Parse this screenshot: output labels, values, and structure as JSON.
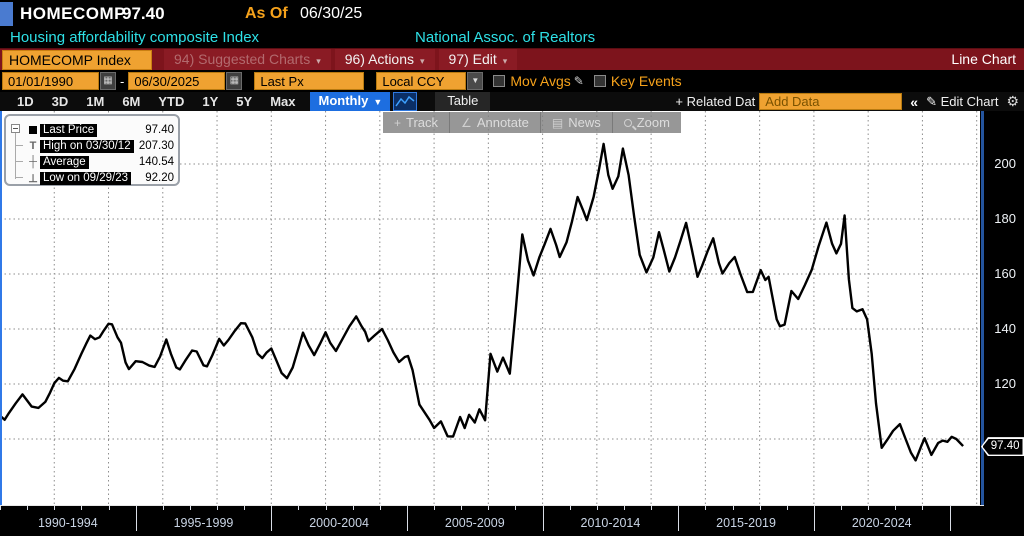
{
  "header": {
    "security": "HOMECOMP",
    "last_value": "97.40",
    "as_of_label": "As Of",
    "as_of_date": "06/30/25",
    "description": "Housing affordability composite Index",
    "source": "National Assoc. of Realtors"
  },
  "menubar": {
    "security_button": "HOMECOMP Index",
    "items": [
      {
        "label": "94) Suggested Charts",
        "dimmed": true
      },
      {
        "label": "96) Actions",
        "dimmed": false
      },
      {
        "label": "97) Edit",
        "dimmed": false
      }
    ],
    "right_label": "Line Chart"
  },
  "controls": {
    "date_from": "01/01/1990",
    "range_dash": "-",
    "date_to": "06/30/2025",
    "price_field": "Last Px",
    "currency_field": "Local CCY",
    "mov_avgs_label": "Mov Avgs",
    "key_events_label": "Key Events"
  },
  "toolbar": {
    "periods": [
      "1D",
      "3D",
      "1M",
      "6M",
      "YTD",
      "1Y",
      "5Y",
      "Max"
    ],
    "frequency": "Monthly",
    "table_label": "Table",
    "plus_label": "+",
    "related_data_label": "Related Dat",
    "add_data_placeholder": "Add Data",
    "collapse_label": "«",
    "edit_chart_label": "Edit Chart"
  },
  "icons": {
    "calendar": "▦",
    "dropdown": "▼",
    "pencil": "✎",
    "gear": "⚙",
    "track": "+",
    "annotate": "∠",
    "news": "▤"
  },
  "chart_tools": [
    "Track",
    "Annotate",
    "News",
    "Zoom"
  ],
  "legend": {
    "rows": [
      {
        "marker": "square",
        "label": "Last Price",
        "value": "97.40"
      },
      {
        "marker": "high",
        "label": "High on 03/30/12",
        "value": "207.30"
      },
      {
        "marker": "avg",
        "label": "Average",
        "value": "140.54"
      },
      {
        "marker": "low",
        "label": "Low on 09/29/23",
        "value": "92.20"
      }
    ]
  },
  "axis": {
    "y_ticks": [
      200,
      180,
      160,
      140,
      120
    ],
    "y_gridlines": [
      200,
      180,
      160,
      140,
      120,
      100
    ],
    "x_gridline_years": [
      1992,
      1994,
      1996,
      1998,
      2000,
      2002,
      2004,
      2006,
      2008,
      2010,
      2012,
      2014,
      2016,
      2018,
      2020,
      2022,
      2024,
      2026
    ],
    "x_separator_years": [
      1995,
      2000,
      2005,
      2010,
      2015,
      2020,
      2025
    ],
    "x_minor_tick_years_range": [
      1990,
      2025
    ],
    "x_sections": [
      "1990-1994",
      "1995-1999",
      "2000-2004",
      "2005-2009",
      "2010-2014",
      "2015-2019",
      "2020-2024"
    ],
    "last_price_tag": "97.40"
  },
  "chart_data": {
    "type": "line",
    "title": "HOMECOMP Index - Housing affordability composite Index (National Assoc. of Realtors)",
    "x_unit": "decimal year, monthly data",
    "x_range": [
      1990.0,
      2025.5
    ],
    "ylim_visible": [
      76,
      220
    ],
    "grid": "dotted",
    "legend_position": "top-left",
    "line_color": "#000000",
    "annotations": {
      "last": {
        "date": "06/30/25",
        "value": 97.4
      },
      "high": {
        "date": "03/30/12",
        "value": 207.3
      },
      "average": 140.54,
      "low": {
        "date": "09/29/23",
        "value": 92.2
      }
    },
    "series": [
      {
        "name": "Last Price",
        "points": [
          [
            1990.0,
            108.5
          ],
          [
            1990.17,
            107.0
          ],
          [
            1990.33,
            109.5
          ],
          [
            1990.58,
            113.0
          ],
          [
            1990.83,
            116.2
          ],
          [
            1991.0,
            114.0
          ],
          [
            1991.17,
            111.8
          ],
          [
            1991.42,
            111.3
          ],
          [
            1991.67,
            113.5
          ],
          [
            1991.83,
            116.5
          ],
          [
            1992.0,
            120.3
          ],
          [
            1992.17,
            122.2
          ],
          [
            1992.33,
            121.2
          ],
          [
            1992.5,
            121.0
          ],
          [
            1992.75,
            125.5
          ],
          [
            1993.0,
            131.0
          ],
          [
            1993.17,
            134.5
          ],
          [
            1993.33,
            137.6
          ],
          [
            1993.5,
            136.3
          ],
          [
            1993.67,
            137.0
          ],
          [
            1993.83,
            139.5
          ],
          [
            1994.0,
            141.9
          ],
          [
            1994.13,
            141.7
          ],
          [
            1994.33,
            137.0
          ],
          [
            1994.46,
            135.0
          ],
          [
            1994.63,
            127.8
          ],
          [
            1994.75,
            125.4
          ],
          [
            1995.0,
            128.3
          ],
          [
            1995.25,
            128.0
          ],
          [
            1995.5,
            126.7
          ],
          [
            1995.7,
            126.2
          ],
          [
            1995.9,
            130.0
          ],
          [
            1996.13,
            136.2
          ],
          [
            1996.3,
            131.0
          ],
          [
            1996.5,
            126.0
          ],
          [
            1996.63,
            125.3
          ],
          [
            1996.83,
            128.5
          ],
          [
            1997.08,
            132.2
          ],
          [
            1997.25,
            131.8
          ],
          [
            1997.5,
            126.8
          ],
          [
            1997.63,
            126.4
          ],
          [
            1997.83,
            130.5
          ],
          [
            1998.08,
            136.4
          ],
          [
            1998.25,
            134.0
          ],
          [
            1998.42,
            136.0
          ],
          [
            1998.63,
            139.0
          ],
          [
            1998.88,
            142.1
          ],
          [
            1999.04,
            142.0
          ],
          [
            1999.3,
            137.0
          ],
          [
            1999.5,
            131.0
          ],
          [
            1999.67,
            129.4
          ],
          [
            1999.83,
            131.5
          ],
          [
            2000.0,
            132.9
          ],
          [
            2000.17,
            129.0
          ],
          [
            2000.38,
            124.0
          ],
          [
            2000.58,
            122.1
          ],
          [
            2000.79,
            126.0
          ],
          [
            2001.0,
            133.0
          ],
          [
            2001.17,
            138.7
          ],
          [
            2001.38,
            134.0
          ],
          [
            2001.58,
            130.5
          ],
          [
            2001.79,
            134.5
          ],
          [
            2002.0,
            138.8
          ],
          [
            2002.17,
            135.0
          ],
          [
            2002.38,
            132.0
          ],
          [
            2002.63,
            136.5
          ],
          [
            2002.88,
            141.0
          ],
          [
            2003.13,
            144.6
          ],
          [
            2003.33,
            141.0
          ],
          [
            2003.46,
            139.0
          ],
          [
            2003.58,
            135.6
          ],
          [
            2003.79,
            137.5
          ],
          [
            2004.08,
            140.0
          ],
          [
            2004.29,
            136.0
          ],
          [
            2004.5,
            131.5
          ],
          [
            2004.71,
            128.0
          ],
          [
            2004.92,
            129.8
          ],
          [
            2005.04,
            130.2
          ],
          [
            2005.21,
            125.0
          ],
          [
            2005.46,
            112.5
          ],
          [
            2005.83,
            107.0
          ],
          [
            2006.0,
            104.0
          ],
          [
            2006.25,
            106.4
          ],
          [
            2006.5,
            101.0
          ],
          [
            2006.7,
            100.9
          ],
          [
            2006.96,
            108.0
          ],
          [
            2007.13,
            104.0
          ],
          [
            2007.29,
            108.8
          ],
          [
            2007.5,
            106.0
          ],
          [
            2007.67,
            110.8
          ],
          [
            2007.88,
            106.8
          ],
          [
            2008.08,
            131.0
          ],
          [
            2008.33,
            124.5
          ],
          [
            2008.54,
            129.6
          ],
          [
            2008.79,
            123.8
          ],
          [
            2009.0,
            146.0
          ],
          [
            2009.25,
            174.4
          ],
          [
            2009.46,
            165.0
          ],
          [
            2009.67,
            159.5
          ],
          [
            2009.88,
            166.0
          ],
          [
            2010.08,
            171.0
          ],
          [
            2010.29,
            176.4
          ],
          [
            2010.5,
            170.5
          ],
          [
            2010.63,
            166.2
          ],
          [
            2010.88,
            171.5
          ],
          [
            2011.08,
            179.0
          ],
          [
            2011.29,
            188.0
          ],
          [
            2011.5,
            183.0
          ],
          [
            2011.63,
            179.6
          ],
          [
            2011.88,
            188.0
          ],
          [
            2012.08,
            198.0
          ],
          [
            2012.25,
            207.3
          ],
          [
            2012.42,
            196.0
          ],
          [
            2012.58,
            191.0
          ],
          [
            2012.79,
            195.5
          ],
          [
            2012.96,
            205.6
          ],
          [
            2013.17,
            196.0
          ],
          [
            2013.38,
            180.5
          ],
          [
            2013.58,
            167.0
          ],
          [
            2013.83,
            160.6
          ],
          [
            2014.08,
            166.0
          ],
          [
            2014.29,
            175.2
          ],
          [
            2014.46,
            169.0
          ],
          [
            2014.67,
            160.9
          ],
          [
            2014.88,
            166.0
          ],
          [
            2015.08,
            172.0
          ],
          [
            2015.29,
            178.6
          ],
          [
            2015.5,
            169.0
          ],
          [
            2015.71,
            159.0
          ],
          [
            2015.88,
            163.0
          ],
          [
            2016.08,
            168.3
          ],
          [
            2016.29,
            173.0
          ],
          [
            2016.5,
            164.0
          ],
          [
            2016.63,
            160.2
          ],
          [
            2016.88,
            164.0
          ],
          [
            2017.08,
            166.2
          ],
          [
            2017.29,
            160.0
          ],
          [
            2017.54,
            153.4
          ],
          [
            2017.75,
            153.5
          ],
          [
            2018.04,
            161.4
          ],
          [
            2018.21,
            157.8
          ],
          [
            2018.33,
            159.0
          ],
          [
            2018.63,
            143.5
          ],
          [
            2018.75,
            141.0
          ],
          [
            2018.92,
            141.6
          ],
          [
            2019.17,
            153.8
          ],
          [
            2019.42,
            150.9
          ],
          [
            2019.67,
            156.0
          ],
          [
            2019.92,
            161.5
          ],
          [
            2020.17,
            170.0
          ],
          [
            2020.46,
            178.7
          ],
          [
            2020.67,
            171.0
          ],
          [
            2020.83,
            167.5
          ],
          [
            2021.0,
            171.0
          ],
          [
            2021.13,
            181.3
          ],
          [
            2021.29,
            158.0
          ],
          [
            2021.42,
            147.6
          ],
          [
            2021.58,
            146.4
          ],
          [
            2021.79,
            147.2
          ],
          [
            2021.96,
            143.5
          ],
          [
            2022.13,
            131.0
          ],
          [
            2022.29,
            113.0
          ],
          [
            2022.5,
            96.8
          ],
          [
            2022.71,
            99.8
          ],
          [
            2022.92,
            103.0
          ],
          [
            2023.17,
            105.4
          ],
          [
            2023.38,
            100.0
          ],
          [
            2023.58,
            95.0
          ],
          [
            2023.75,
            92.2
          ],
          [
            2023.96,
            97.5
          ],
          [
            2024.08,
            100.3
          ],
          [
            2024.33,
            94.2
          ],
          [
            2024.58,
            98.6
          ],
          [
            2024.75,
            99.4
          ],
          [
            2024.92,
            99.0
          ],
          [
            2025.08,
            100.8
          ],
          [
            2025.25,
            100.0
          ],
          [
            2025.5,
            97.4
          ]
        ]
      }
    ]
  },
  "colors": {
    "accent_blue": "#1d6ee0",
    "amber": "#efa231",
    "cyan_text": "#2ee0e6",
    "menu_red": "#7d141c",
    "plot_bg": "#ffffff",
    "line": "#000000",
    "gridline": "#8c8c8c"
  }
}
